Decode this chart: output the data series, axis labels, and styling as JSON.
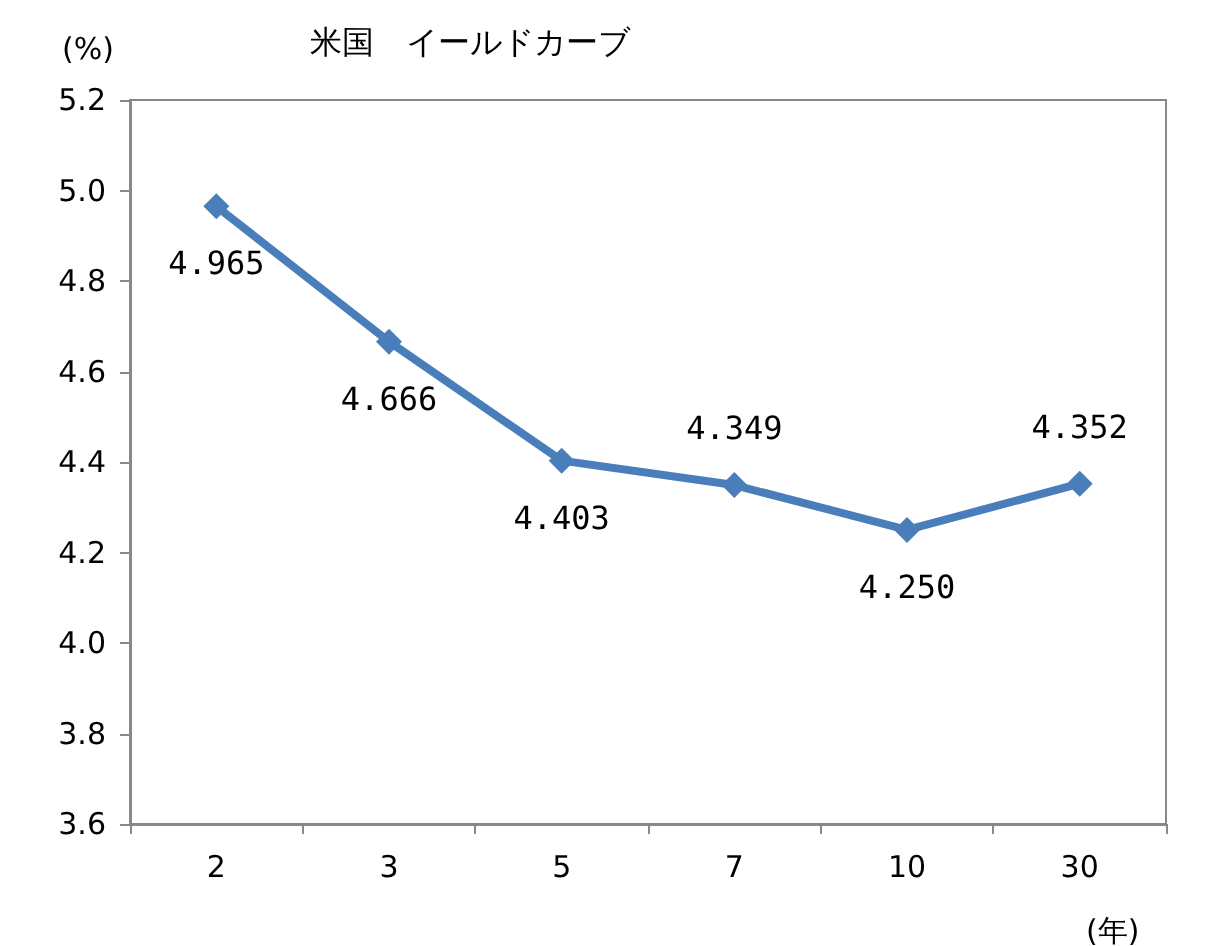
{
  "chart_data": {
    "type": "line",
    "title": "米国　イールドカーブ",
    "ylabel": "(%)",
    "xlabel": "(年)",
    "categories": [
      "2",
      "3",
      "5",
      "7",
      "10",
      "30"
    ],
    "series": [
      {
        "color": "#4a7ebb",
        "values": [
          4.965,
          4.666,
          4.403,
          4.349,
          4.25,
          4.352
        ],
        "value_labels": [
          "4.965",
          "4.666",
          "4.403",
          "4.349",
          "4.250",
          "4.352"
        ]
      }
    ],
    "ylim": [
      3.6,
      5.2
    ],
    "yticks": [
      {
        "value": 3.6,
        "label": "3.6"
      },
      {
        "value": 3.8,
        "label": "3.8"
      },
      {
        "value": 4,
        "label": "4.0"
      },
      {
        "value": 4.2,
        "label": "4.2"
      },
      {
        "value": 4.4,
        "label": "4.4"
      },
      {
        "value": 4.6,
        "label": "4.6"
      },
      {
        "value": 4.8,
        "label": "4.8"
      },
      {
        "value": 5,
        "label": "5.0"
      },
      {
        "value": 5.2,
        "label": "5.2"
      }
    ],
    "grid": false,
    "marker": "diamond",
    "line_style": "solid"
  }
}
